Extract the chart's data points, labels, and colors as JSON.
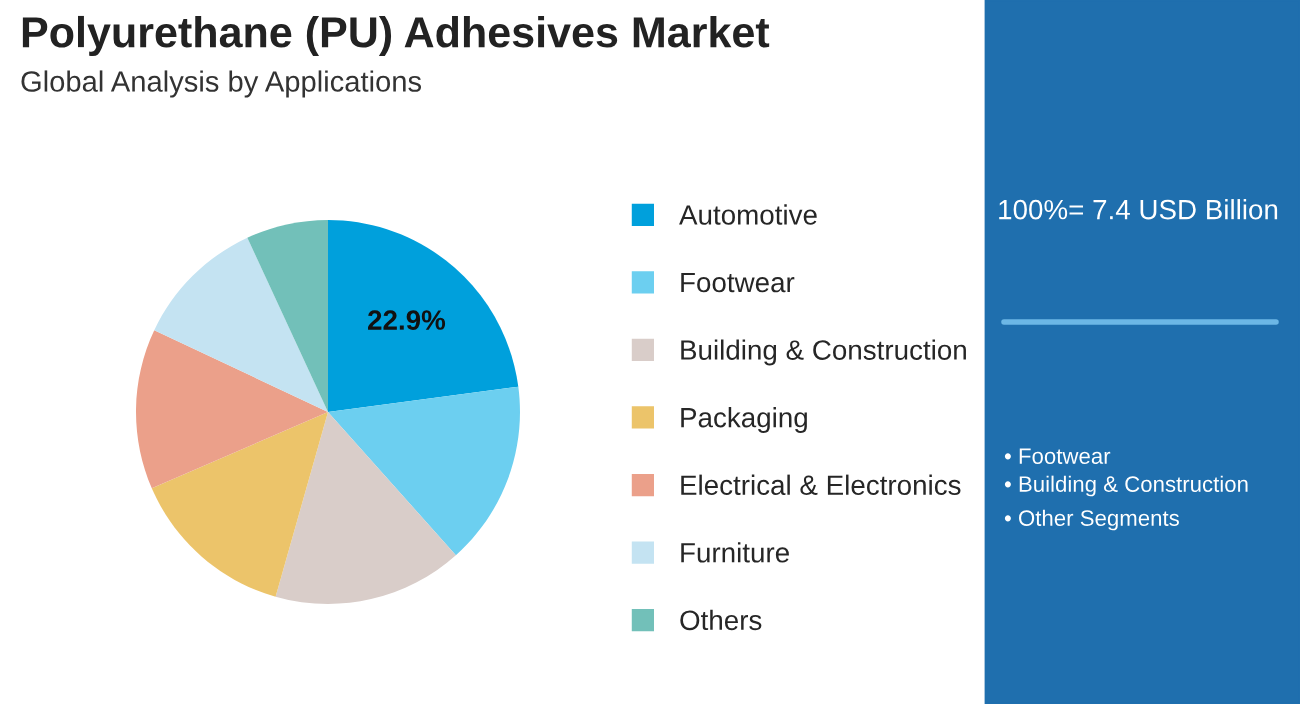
{
  "chart_data": {
    "type": "pie",
    "title": "Polyurethane (PU) Adhesives Market",
    "subtitle": "Global Analysis by Applications",
    "categories": [
      "Automotive",
      "Footwear",
      "Building & Construction",
      "Packaging",
      "Electrical & Electronics",
      "Furniture",
      "Others"
    ],
    "values": [
      22.9,
      15.5,
      16.0,
      14.1,
      13.5,
      11.1,
      6.9
    ],
    "colors": [
      "#00a0dc",
      "#6ccff0",
      "#d9cdc9",
      "#ecc46a",
      "#eba08a",
      "#c4e3f2",
      "#72c0b9"
    ],
    "value_labels": [
      "22.9%",
      null,
      null,
      null,
      null,
      null,
      null
    ],
    "legend": "right",
    "annotations": [
      "100%= 7.4 USD Billion",
      "• Footwear",
      "• Building & Construction",
      "• Other Segments"
    ]
  }
}
